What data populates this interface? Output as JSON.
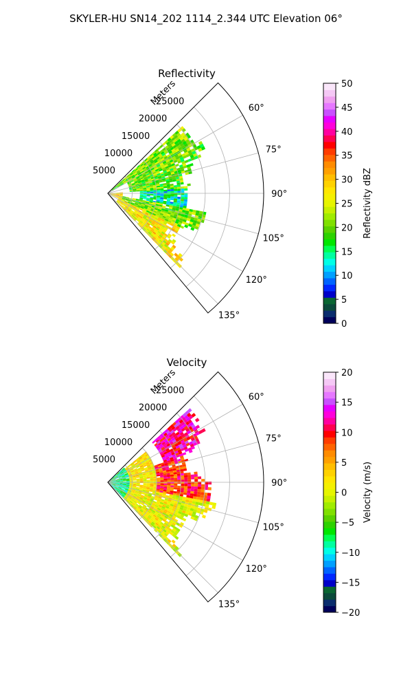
{
  "figure": {
    "title": "SKYLER-HU  SN14_202  1114_2.344 UTC Elevation 06°"
  },
  "colors": {
    "grid": "#b0b0b0",
    "nodata": "#ffffff",
    "reflectivity_colormap": [
      "#00005a",
      "#0a2d6e",
      "#0b4a3a",
      "#0a6632",
      "#0000c8",
      "#0028ff",
      "#0064ff",
      "#00a0ff",
      "#00d2ff",
      "#00ffe6",
      "#00ffa0",
      "#00ff50",
      "#00e600",
      "#2dd200",
      "#5ad200",
      "#80e000",
      "#a0ec00",
      "#c8f000",
      "#e6f500",
      "#f5f000",
      "#ffe600",
      "#ffd200",
      "#ffbe00",
      "#ffa000",
      "#ff8c00",
      "#ff6400",
      "#ff3c00",
      "#ff0000",
      "#ff0050",
      "#ff00a0",
      "#ff00dc",
      "#e600ff",
      "#c850ff",
      "#e678ff",
      "#f0a0f0",
      "#f5c8f5",
      "#fae6fa"
    ],
    "velocity_colormap": [
      "#00005a",
      "#0a2d6e",
      "#0b4a3a",
      "#0a6632",
      "#0000c8",
      "#0028ff",
      "#0064ff",
      "#00a0ff",
      "#00d2ff",
      "#00ffe6",
      "#00ffa0",
      "#00ff50",
      "#00e600",
      "#2dd200",
      "#5ad200",
      "#80e000",
      "#a0ec00",
      "#c8f000",
      "#e6f500",
      "#f5f000",
      "#ffe600",
      "#ffd200",
      "#ffbe00",
      "#ffa000",
      "#ff8c00",
      "#ff6400",
      "#ff3c00",
      "#ff0000",
      "#ff0050",
      "#ff00a0",
      "#ff00dc",
      "#e600ff",
      "#c850ff",
      "#e678ff",
      "#f0a0f0",
      "#f5c8f5",
      "#fae6fa"
    ]
  },
  "chart_data": [
    {
      "type": "heatmap",
      "projection": "polar-sector",
      "title": "Reflectivity",
      "range_label": "Meters",
      "range_ticks": [
        5000,
        10000,
        15000,
        20000,
        25000
      ],
      "range_max": 32000,
      "azimuth_ticks": [
        "60°",
        "75°",
        "90°",
        "105°",
        "120°",
        "135°"
      ],
      "azimuth_tick_values": [
        60,
        75,
        90,
        105,
        120,
        135
      ],
      "azimuth_range": [
        45,
        140
      ],
      "colorbar": {
        "label": "Reflectivity dBZ",
        "ticks": [
          "0",
          "5",
          "10",
          "15",
          "20",
          "25",
          "30",
          "35",
          "40",
          "45",
          "50"
        ],
        "min": 0,
        "max": 50
      },
      "field_summary": [
        {
          "azimuth": [
            48,
            60
          ],
          "range": [
            500,
            20000
          ],
          "value": 21
        },
        {
          "azimuth": [
            60,
            85
          ],
          "range": [
            4000,
            22000
          ],
          "value": 20
        },
        {
          "azimuth": [
            85,
            100
          ],
          "range": [
            6000,
            16000
          ],
          "value": 14
        },
        {
          "azimuth": [
            100,
            115
          ],
          "range": [
            3000,
            20000
          ],
          "value": 21
        },
        {
          "azimuth": [
            115,
            135
          ],
          "range": [
            2000,
            22000
          ],
          "value": 27
        },
        {
          "azimuth": [
            85,
            115
          ],
          "range": [
            0,
            3000
          ],
          "value": 28
        }
      ]
    },
    {
      "type": "heatmap",
      "projection": "polar-sector",
      "title": "Velocity",
      "range_label": "Meters",
      "range_ticks": [
        5000,
        10000,
        15000,
        20000,
        25000
      ],
      "range_max": 32000,
      "azimuth_ticks": [
        "60°",
        "75°",
        "90°",
        "105°",
        "120°",
        "135°"
      ],
      "azimuth_tick_values": [
        60,
        75,
        90,
        105,
        120,
        135
      ],
      "azimuth_range": [
        45,
        140
      ],
      "colorbar": {
        "label": "Velocity (m/s)",
        "ticks": [
          "−20",
          "−15",
          "−10",
          "−5",
          "0",
          "5",
          "10",
          "15",
          "20"
        ],
        "min": -20,
        "max": 20
      },
      "field_summary": [
        {
          "azimuth": [
            48,
            70
          ],
          "range": [
            12000,
            22000
          ],
          "value": 12
        },
        {
          "azimuth": [
            70,
            100
          ],
          "range": [
            8000,
            21000
          ],
          "value": 9
        },
        {
          "azimuth": [
            50,
            100
          ],
          "range": [
            3000,
            10000
          ],
          "value": 2
        },
        {
          "azimuth": [
            100,
            135
          ],
          "range": [
            4000,
            22000
          ],
          "value": 1
        },
        {
          "azimuth": [
            48,
            135
          ],
          "range": [
            0,
            4000
          ],
          "value": -8
        }
      ]
    }
  ]
}
